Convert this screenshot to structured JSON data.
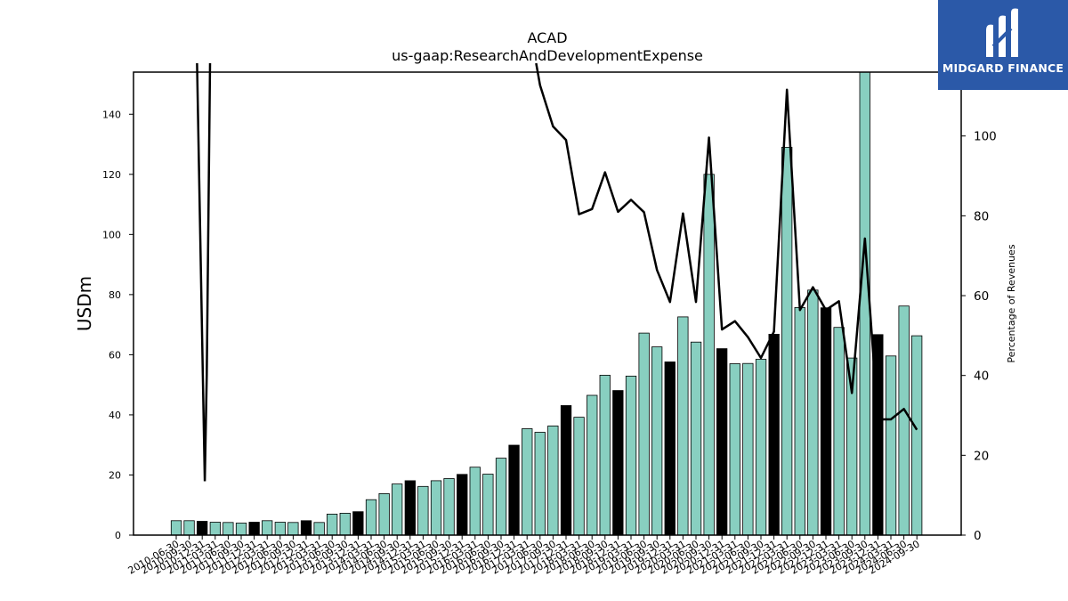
{
  "chart_data": {
    "type": "bar+line",
    "title": "ACAD",
    "subtitle": "us-gaap:ResearchAndDevelopmentExpense",
    "ylabel": "USDm",
    "y2label": "Percentage of Revenues",
    "ylim": [
      0,
      154
    ],
    "y2lim": [
      0,
      116
    ],
    "yticks": [
      0,
      20,
      40,
      60,
      80,
      100,
      120,
      140
    ],
    "y2ticks": [
      0,
      20,
      40,
      60,
      80,
      100
    ],
    "grid": false,
    "categories": [
      "2010-06-30",
      "2010-09-30",
      "2010-12-31",
      "2011-03-31",
      "2011-06-30",
      "2011-09-30",
      "2011-12-31",
      "2012-03-31",
      "2012-06-30",
      "2012-09-30",
      "2012-12-31",
      "2013-03-31",
      "2013-06-30",
      "2013-09-30",
      "2013-12-31",
      "2014-03-31",
      "2014-06-30",
      "2014-09-30",
      "2014-12-31",
      "2015-03-31",
      "2015-06-30",
      "2015-09-30",
      "2015-12-31",
      "2016-03-31",
      "2016-06-30",
      "2016-09-30",
      "2016-12-31",
      "2017-03-31",
      "2017-06-30",
      "2017-09-30",
      "2017-12-31",
      "2018-03-31",
      "2018-06-30",
      "2018-09-30",
      "2018-12-31",
      "2019-03-31",
      "2019-06-30",
      "2019-09-30",
      "2019-12-31",
      "2020-03-31",
      "2020-06-30",
      "2020-09-30",
      "2020-12-31",
      "2021-03-31",
      "2021-06-30",
      "2021-09-30",
      "2021-12-31",
      "2022-03-31",
      "2022-06-30",
      "2022-09-30",
      "2022-12-31",
      "2023-03-31",
      "2023-06-30",
      "2023-09-30",
      "2023-12-31",
      "2024-03-31",
      "2024-06-30",
      "2024-09-30"
    ],
    "series": [
      {
        "kind": "bar",
        "values": [
          4.8,
          4.8,
          4.6,
          4.3,
          4.2,
          4.0,
          4.3,
          4.8,
          4.3,
          4.2,
          4.8,
          4.2,
          7.0,
          7.3,
          7.8,
          11.8,
          13.8,
          17.0,
          18.1,
          16.2,
          18.1,
          18.8,
          20.2,
          22.6,
          20.3,
          25.6,
          29.9,
          35.4,
          34.2,
          36.3,
          43.1,
          39.2,
          46.5,
          53.2,
          48.1,
          52.9,
          67.2,
          62.6,
          57.6,
          72.6,
          64.2,
          120.0,
          62.0,
          57.0,
          57.1,
          58.5,
          66.8,
          129.0,
          75.7,
          81.5,
          75.6,
          69.1,
          58.9,
          154.0,
          66.7,
          59.6,
          76.2,
          66.3
        ],
        "dark": [
          false,
          false,
          true,
          false,
          false,
          false,
          true,
          false,
          false,
          false,
          true,
          false,
          false,
          false,
          true,
          false,
          false,
          false,
          true,
          false,
          false,
          false,
          true,
          false,
          false,
          false,
          true,
          false,
          false,
          false,
          true,
          false,
          false,
          false,
          true,
          false,
          false,
          false,
          true,
          false,
          false,
          false,
          true,
          false,
          false,
          false,
          true,
          false,
          false,
          false,
          true,
          false,
          false,
          false,
          true,
          false,
          false,
          false
        ],
        "axis": "left"
      },
      {
        "kind": "line",
        "axis": "right",
        "values": [
          null,
          null,
          null,
          13.5,
          null,
          null,
          null,
          null,
          null,
          null,
          null,
          null,
          null,
          null,
          null,
          null,
          null,
          null,
          null,
          null,
          null,
          null,
          null,
          null,
          null,
          null,
          null,
          null,
          112.7,
          102.4,
          99.0,
          80.4,
          81.7,
          90.9,
          81.0,
          84.0,
          80.9,
          66.4,
          58.4,
          80.6,
          58.4,
          99.6,
          51.5,
          53.6,
          49.6,
          44.4,
          51.0,
          111.6,
          56.4,
          62.1,
          56.4,
          58.6,
          35.6,
          74.3,
          29.0,
          29.0,
          31.6,
          26.4
        ],
        "breaks": {
          "before_first_left": 119,
          "after_first_right": 119,
          "before_second_left": 119
        }
      }
    ],
    "colors": {
      "bar": "#88cfc0",
      "bar_dark": "#000000",
      "line": "#000000"
    }
  },
  "logo": {
    "text": "MIDGARD FINANCE"
  }
}
